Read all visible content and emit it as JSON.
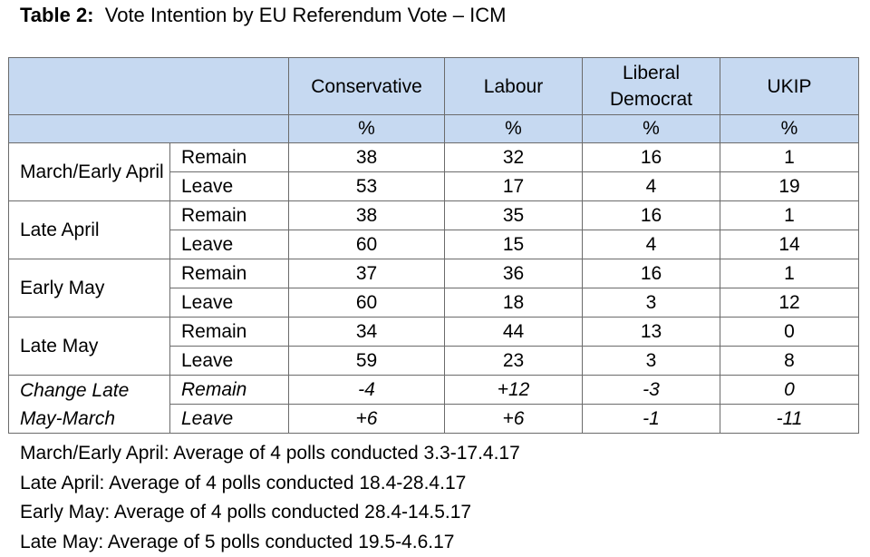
{
  "title": {
    "prefix": "Table 2:",
    "text": "Vote Intention by EU Referendum Vote – ICM"
  },
  "columns": [
    "Conservative",
    "Labour",
    "Liberal Democrat",
    "UKIP"
  ],
  "unit": "%",
  "periods": [
    {
      "label": "March/Early April",
      "rows": [
        {
          "vote": "Remain",
          "values": [
            "38",
            "32",
            "16",
            "1"
          ]
        },
        {
          "vote": "Leave",
          "values": [
            "53",
            "17",
            "4",
            "19"
          ]
        }
      ]
    },
    {
      "label": "Late April",
      "rows": [
        {
          "vote": "Remain",
          "values": [
            "38",
            "35",
            "16",
            "1"
          ]
        },
        {
          "vote": "Leave",
          "values": [
            "60",
            "15",
            "4",
            "14"
          ]
        }
      ]
    },
    {
      "label": "Early May",
      "rows": [
        {
          "vote": "Remain",
          "values": [
            "37",
            "36",
            "16",
            "1"
          ]
        },
        {
          "vote": "Leave",
          "values": [
            "60",
            "18",
            "3",
            "12"
          ]
        }
      ]
    },
    {
      "label": "Late May",
      "rows": [
        {
          "vote": "Remain",
          "values": [
            "34",
            "44",
            "13",
            "0"
          ]
        },
        {
          "vote": "Leave",
          "values": [
            "59",
            "23",
            "3",
            "8"
          ]
        }
      ]
    },
    {
      "label": "Change Late May-March",
      "rows": [
        {
          "vote": "Remain",
          "values": [
            "-4",
            "+12",
            "-3",
            "0"
          ]
        },
        {
          "vote": "Leave",
          "values": [
            "+6",
            "+6",
            "-1",
            "-11"
          ]
        }
      ]
    }
  ],
  "notes": [
    "March/Early April: Average of 4 polls conducted 3.3-17.4.17",
    "Late April: Average of 4 polls conducted 18.4-28.4.17",
    "Early May: Average of 4 polls conducted 28.4-14.5.17",
    "Late May: Average of 5 polls conducted 19.5-4.6.17"
  ],
  "colors": {
    "header_bg": "#c6d9f1",
    "border": "#6b6b6b"
  }
}
